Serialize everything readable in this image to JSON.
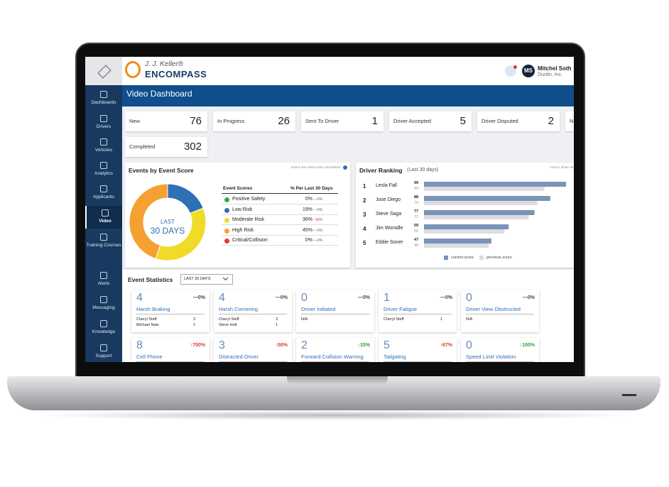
{
  "header": {
    "brand_small": "J. J. Keller®",
    "brand": "ENCOMPASS",
    "initials": "MS",
    "user_name": "Mitchel Soth",
    "company": "Dunlin, Inc."
  },
  "sidebar": [
    "Dashboards",
    "Drivers",
    "Vehicles",
    "Analytics",
    "Applicants",
    "Video",
    "Training Courses",
    "Alerts",
    "Messaging",
    "Knowledge",
    "Support"
  ],
  "page_title": "Video Dashboard",
  "status_cards": [
    {
      "label": "New",
      "value": 76
    },
    {
      "label": "In Progress",
      "value": 26
    },
    {
      "label": "Sent To Driver",
      "value": 1
    },
    {
      "label": "Driver Accepted",
      "value": 5
    },
    {
      "label": "Driver Disputed",
      "value": 2
    },
    {
      "label": "N",
      "value": null
    },
    {
      "label": "Completed",
      "value": 302
    }
  ],
  "event_score": {
    "title": "Events by Event Score",
    "help": "How is the event score calculated?",
    "center_top": "LAST",
    "center_bottom": "30 DAYS",
    "col_name": "Event Scores",
    "col_pct": "% Per Last 30 Days",
    "rows": [
      {
        "name": "Positive Safety",
        "pct": 0,
        "pct_label": "0%",
        "change": "—0%",
        "color": "#3aa845"
      },
      {
        "name": "Low Risk",
        "pct": 19,
        "pct_label": "19%",
        "change": "—0%",
        "color": "#2f6fb5"
      },
      {
        "name": "Moderate Risk",
        "pct": 36,
        "pct_label": "36%",
        "change": "↑30%",
        "color": "#f0dc28"
      },
      {
        "name": "High Risk",
        "pct": 45,
        "pct_label": "45%",
        "change": "—0%",
        "color": "#f5a030"
      },
      {
        "name": "Critical/Collision",
        "pct": 0,
        "pct_label": "0%",
        "change": "—0%",
        "color": "#e0392b"
      }
    ]
  },
  "driver_ranking": {
    "title": "Driver Ranking",
    "subtitle": "(Last 30 days)",
    "help": "How is driver ranking",
    "legend_current": "current score",
    "legend_previous": "previous score",
    "drivers": [
      {
        "rank": 1,
        "name": "Lesla Fall",
        "current": 99,
        "previous": 84
      },
      {
        "rank": 2,
        "name": "Jose Diego",
        "current": 88,
        "previous": 79
      },
      {
        "rank": 3,
        "name": "Steve Saga",
        "current": 77,
        "previous": 73
      },
      {
        "rank": 4,
        "name": "Jim Worsdle",
        "current": 59,
        "previous": 56
      },
      {
        "rank": 5,
        "name": "Eddie Soner",
        "current": 47,
        "previous": 45
      }
    ]
  },
  "event_statistics": {
    "title": "Event Statistics",
    "period": "LAST 30 DAYS",
    "cards": [
      {
        "count": 4,
        "change": "—0%",
        "name": "Harsh Braking",
        "rows": [
          [
            "Cheryl Steff",
            "3"
          ],
          [
            "Michael Nale",
            "1"
          ]
        ]
      },
      {
        "count": 4,
        "change": "—0%",
        "name": "Harsh Cornering",
        "rows": [
          [
            "Cheryl Steff",
            "3"
          ],
          [
            "Steve Hott",
            "1"
          ]
        ]
      },
      {
        "count": 0,
        "change": "—0%",
        "name": "Driver Initiated",
        "rows": [
          [
            "N/A"
          ]
        ]
      },
      {
        "count": 1,
        "change": "—0%",
        "name": "Driver Fatigue",
        "rows": [
          [
            "Cheryl Steff",
            "1"
          ]
        ]
      },
      {
        "count": 0,
        "change": "—0%",
        "name": "Driver View Obstructed",
        "rows": [
          [
            "N/A"
          ]
        ]
      },
      {
        "count": 8,
        "change": "↑700%",
        "name": "Cell Phone",
        "rows": []
      },
      {
        "count": 3,
        "change": "↑50%",
        "name": "Distracted Driver",
        "rows": []
      },
      {
        "count": 2,
        "change": "↓33%",
        "name": "Forward Collision Warning",
        "rows": []
      },
      {
        "count": 5,
        "change": "↑67%",
        "name": "Tailgating",
        "rows": []
      },
      {
        "count": 0,
        "change": "↓100%",
        "name": "Speed Limit Violation",
        "rows": []
      }
    ]
  }
}
